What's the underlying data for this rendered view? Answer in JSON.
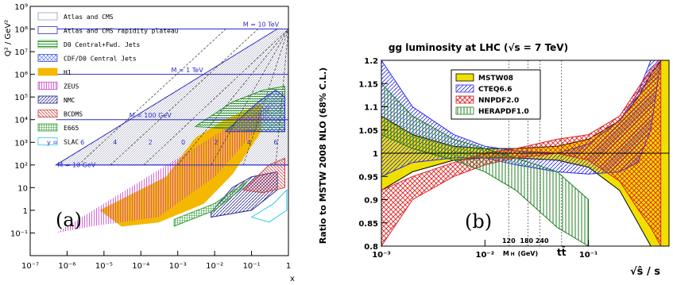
{
  "panel_a": {
    "ylabel": "Q² / GeV²",
    "xlabel": "x",
    "panel_label": "(a)",
    "legend": [
      {
        "label": "Atlas and CMS",
        "style": "blank",
        "color": "#9a9ab8"
      },
      {
        "label": "Atlas and CMS rapidity plateau",
        "style": "outline",
        "color": "#2a2acc"
      },
      {
        "label": "D0 Central+Fwd. Jets",
        "style": "hlines",
        "color": "#2a9a2a"
      },
      {
        "label": "CDF/D0 Central Jets",
        "style": "cross",
        "color": "#3a5ad8"
      },
      {
        "label": "H1",
        "style": "solid",
        "color": "#f5b800"
      },
      {
        "label": "ZEUS",
        "style": "vlines",
        "color": "#d040d0"
      },
      {
        "label": "NMC",
        "style": "diag",
        "color": "#2a2a90"
      },
      {
        "label": "BCDMS",
        "style": "diag2",
        "color": "#d04040"
      },
      {
        "label": "E665",
        "style": "vgrid",
        "color": "#3aa03a"
      },
      {
        "label": "SLAC",
        "style": "outline",
        "color": "#30c8e8"
      }
    ],
    "annotations": [
      {
        "text": "M = 10 TeV",
        "x": 0.18,
        "logq2": 8.1
      },
      {
        "text": "M = 1 TeV",
        "x": 0.0018,
        "logq2": 6.1
      },
      {
        "text": "M = 100 GeV",
        "x": 0.00018,
        "logq2": 4.1
      },
      {
        "text": "M = 10 GeV",
        "x": 1.8e-06,
        "logq2": 1.9
      },
      {
        "text": "y =",
        "x": 4e-07,
        "logq2": 2.9
      },
      {
        "text": "6",
        "x": 2.6e-06,
        "logq2": 2.9
      },
      {
        "text": "4",
        "x": 2e-05,
        "logq2": 2.9
      },
      {
        "text": "2",
        "x": 0.00018,
        "logq2": 2.9
      },
      {
        "text": "0",
        "x": 0.0014,
        "logq2": 2.9
      },
      {
        "text": "2",
        "x": 0.011,
        "logq2": 2.9
      },
      {
        "text": "4",
        "x": 0.085,
        "logq2": 2.9
      },
      {
        "text": "6",
        "x": 0.45,
        "logq2": 2.9
      }
    ],
    "chart_data": {
      "type": "scatter",
      "xscale": "log",
      "yscale": "log",
      "xlim": [
        1e-07,
        1
      ],
      "ylim": [
        0.01,
        1000000000
      ],
      "xticks": [
        "10⁻⁷",
        "10⁻⁶",
        "10⁻⁵",
        "10⁻⁴",
        "10⁻³",
        "10⁻²",
        "10⁻¹",
        "1"
      ],
      "yticks": [
        "10⁻¹",
        "1",
        "10",
        "10²",
        "10³",
        "10⁴",
        "10⁵",
        "10⁶",
        "10⁷",
        "10⁸",
        "10⁹"
      ],
      "grid": false,
      "legend_position": "top-left",
      "regions": [
        {
          "name": "Atlas and CMS",
          "points": [
            [
              5e-07,
              100
            ],
            [
              1,
              100
            ],
            [
              1,
              100000000
            ],
            [
              0.5,
              100000000
            ]
          ]
        },
        {
          "name": "H1",
          "points": [
            [
              8e-06,
              1
            ],
            [
              0.0005,
              30
            ],
            [
              0.003,
              1500
            ],
            [
              0.02,
              10000
            ],
            [
              0.18,
              50000
            ],
            [
              0.18,
              3000
            ],
            [
              0.03,
              40
            ],
            [
              0.005,
              2
            ],
            [
              0.0003,
              0.3
            ],
            [
              3e-05,
              0.2
            ]
          ]
        },
        {
          "name": "ZEUS",
          "points": [
            [
              5e-07,
              0.1
            ],
            [
              5e-06,
              0.2
            ],
            [
              0.0003,
              0.5
            ],
            [
              0.01,
              30
            ],
            [
              0.1,
              2000
            ],
            [
              0.3,
              20000
            ],
            [
              0.3,
              40000
            ],
            [
              0.05,
              10000
            ]
          ]
        },
        {
          "name": "D0 Central+Fwd. Jets",
          "points": [
            [
              0.003,
              5000
            ],
            [
              0.03,
              60000
            ],
            [
              0.2,
              200000
            ],
            [
              0.8,
              300000
            ],
            [
              0.8,
              3000
            ],
            [
              0.2,
              3000
            ]
          ]
        },
        {
          "name": "CDF/D0 Central Jets",
          "points": [
            [
              0.02,
              3000
            ],
            [
              0.15,
              60000
            ],
            [
              0.45,
              200000
            ],
            [
              0.8,
              100000
            ],
            [
              0.8,
              3000
            ]
          ]
        },
        {
          "name": "NMC",
          "points": [
            [
              0.008,
              0.8
            ],
            [
              0.03,
              10
            ],
            [
              0.1,
              30
            ],
            [
              0.5,
              50
            ],
            [
              0.5,
              8
            ],
            [
              0.1,
              1
            ],
            [
              0.008,
              0.5
            ]
          ]
        },
        {
          "name": "BCDMS",
          "points": [
            [
              0.06,
              8
            ],
            [
              0.3,
              100
            ],
            [
              0.8,
              200
            ],
            [
              0.8,
              10
            ],
            [
              0.2,
              6
            ]
          ]
        },
        {
          "name": "E665",
          "points": [
            [
              0.0008,
              0.2
            ],
            [
              0.01,
              1
            ],
            [
              0.05,
              8
            ],
            [
              0.08,
              20
            ],
            [
              0.01,
              2
            ],
            [
              0.0008,
              0.4
            ]
          ]
        },
        {
          "name": "SLAC",
          "points": [
            [
              0.1,
              0.5
            ],
            [
              0.4,
              2
            ],
            [
              0.9,
              8
            ],
            [
              0.9,
              1
            ],
            [
              0.3,
              0.3
            ]
          ]
        }
      ]
    }
  },
  "panel_b": {
    "title": "gg luminosity at LHC (√s = 7 TeV)",
    "ylabel": "Ratio to MSTW 2008 NLO (68% C.L.)",
    "xlabel": "√ŝ / s",
    "panel_label": "(b)",
    "mass_labels": [
      {
        "text": "120",
        "x": 0.017
      },
      {
        "text": "180 240",
        "x": 0.03
      },
      {
        "text": "M",
        "x": 0.016
      },
      {
        "text": "H",
        "x": 0.0185
      },
      {
        "text": "(GeV)",
        "x": 0.026
      },
      {
        "text": "tt̄",
        "x": 0.055
      }
    ],
    "legend": [
      {
        "label": "MSTW08",
        "style": "solid",
        "color": "#f0e000"
      },
      {
        "label": "CTEQ6.6",
        "style": "diag",
        "color": "#2a2aee"
      },
      {
        "label": "NNPDF2.0",
        "style": "cross",
        "color": "#e02020"
      },
      {
        "label": "HERAPDF1.0",
        "style": "vlines",
        "color": "#208020"
      }
    ],
    "chart_data": {
      "type": "area",
      "xscale": "log",
      "xlim": [
        0.001,
        0.6
      ],
      "ylim": [
        0.8,
        1.2
      ],
      "yticks": [
        "0.8",
        "0.85",
        "0.9",
        "0.95",
        "1",
        "1.05",
        "1.1",
        "1.15",
        "1.2"
      ],
      "xticks": [
        "10⁻³",
        "10⁻²",
        "10⁻¹"
      ],
      "grid": false,
      "legend_position": "top-left",
      "reference_line": 1,
      "vertical_markers": [
        0.017,
        0.026,
        0.034,
        0.055
      ],
      "series": [
        {
          "name": "MSTW08",
          "x": [
            0.001,
            0.002,
            0.005,
            0.01,
            0.02,
            0.05,
            0.1,
            0.2,
            0.3,
            0.4,
            0.5,
            0.6
          ],
          "lower": [
            0.92,
            0.96,
            0.985,
            0.99,
            0.99,
            0.985,
            0.97,
            0.92,
            0.85,
            0.8,
            0.8,
            0.8
          ],
          "upper": [
            1.08,
            1.04,
            1.015,
            1.01,
            1.01,
            1.015,
            1.03,
            1.07,
            1.12,
            1.17,
            1.2,
            1.2
          ]
        },
        {
          "name": "CTEQ6.6",
          "x": [
            0.001,
            0.002,
            0.005,
            0.01,
            0.02,
            0.05,
            0.1,
            0.2,
            0.3,
            0.4,
            0.5
          ],
          "lower": [
            0.95,
            0.98,
            0.99,
            0.99,
            0.975,
            0.96,
            0.955,
            0.96,
            0.98,
            1.05,
            1.2
          ],
          "upper": [
            1.2,
            1.1,
            1.04,
            1.015,
            1.005,
            1.0,
            1.02,
            1.07,
            1.13,
            1.2,
            1.2
          ]
        },
        {
          "name": "NNPDF2.0",
          "x": [
            0.001,
            0.002,
            0.005,
            0.01,
            0.02,
            0.05,
            0.1,
            0.2,
            0.3,
            0.4,
            0.5
          ],
          "lower": [
            0.8,
            0.9,
            0.95,
            0.975,
            0.99,
            1.0,
            0.985,
            0.94,
            0.88,
            0.84,
            0.8
          ],
          "upper": [
            0.92,
            0.95,
            0.98,
            1.0,
            1.01,
            1.03,
            1.04,
            1.08,
            1.14,
            1.18,
            1.2
          ]
        },
        {
          "name": "HERAPDF1.0",
          "x": [
            0.001,
            0.002,
            0.005,
            0.01,
            0.02,
            0.05,
            0.1
          ],
          "lower": [
            1.04,
            1.01,
            0.985,
            0.96,
            0.92,
            0.84,
            0.8
          ],
          "upper": [
            1.15,
            1.08,
            1.03,
            1.01,
            0.99,
            0.96,
            0.9
          ]
        }
      ]
    }
  }
}
